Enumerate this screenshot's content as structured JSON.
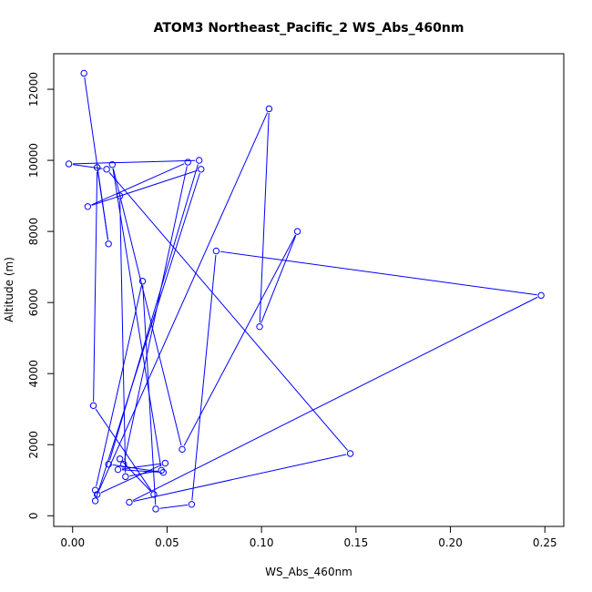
{
  "chart_data": {
    "type": "line",
    "title": "ATOM3 Northeast_Pacific_2 WS_Abs_460nm",
    "xlabel": "WS_Abs_460nm",
    "ylabel": "Altitude (m)",
    "xlim": [
      -0.01,
      0.26
    ],
    "ylim": [
      -300,
      13000
    ],
    "xticks": [
      0.0,
      0.05,
      0.1,
      0.15,
      0.2,
      0.25
    ],
    "xtick_labels": [
      "0.00",
      "0.05",
      "0.10",
      "0.15",
      "0.20",
      "0.25"
    ],
    "yticks": [
      0,
      2000,
      4000,
      6000,
      8000,
      10000,
      12000
    ],
    "ytick_labels": [
      "0",
      "2000",
      "4000",
      "6000",
      "8000",
      "10000",
      "12000"
    ],
    "grid": false,
    "marker": "open-circle",
    "series": [
      {
        "color": "#0000ff",
        "points": [
          [
            0.006,
            12450
          ],
          [
            0.019,
            7650
          ],
          [
            0.013,
            9800
          ],
          [
            0.011,
            3100
          ],
          [
            0.043,
            600
          ],
          [
            0.025,
            1600
          ],
          [
            0.027,
            1450
          ],
          [
            0.061,
            9950
          ],
          [
            0.008,
            8700
          ],
          [
            0.068,
            9750
          ],
          [
            0.012,
            420
          ],
          [
            0.012,
            720
          ],
          [
            0.037,
            6600
          ],
          [
            0.044,
            190
          ],
          [
            0.063,
            320
          ],
          [
            0.076,
            7450
          ],
          [
            0.248,
            6200
          ],
          [
            0.03,
            380
          ],
          [
            0.147,
            1750
          ],
          [
            0.018,
            9750
          ],
          [
            -0.002,
            9900
          ],
          [
            0.067,
            10000
          ],
          [
            0.019,
            1450
          ],
          [
            0.048,
            1220
          ],
          [
            0.024,
            1300
          ],
          [
            0.049,
            1480
          ],
          [
            0.013,
            600
          ],
          [
            0.104,
            11450
          ],
          [
            0.099,
            5320
          ],
          [
            0.119,
            8000
          ],
          [
            0.058,
            1870
          ],
          [
            0.021,
            9880
          ],
          [
            0.047,
            1280
          ],
          [
            0.028,
            1100
          ],
          [
            0.025,
            9000
          ]
        ]
      }
    ]
  }
}
